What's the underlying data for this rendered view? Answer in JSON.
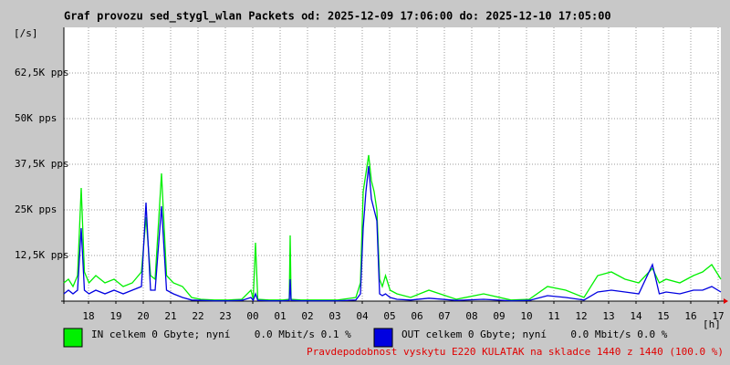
{
  "chart_data": {
    "type": "line",
    "title": "Graf provozu sed_stygl_wlan Packets od: 2025-12-09 17:06:00 do: 2025-12-10 17:05:00",
    "y_unit": "[/s]",
    "x_unit": "[h]",
    "x": [
      0,
      10,
      20,
      30,
      38,
      45,
      55,
      70,
      90,
      110,
      130,
      150,
      170,
      180,
      190,
      200,
      214,
      225,
      240,
      260,
      280,
      300,
      330,
      360,
      390,
      410,
      415,
      420,
      425,
      450,
      480,
      494,
      496,
      498,
      520,
      560,
      600,
      640,
      650,
      656,
      662,
      668,
      674,
      680,
      686,
      692,
      698,
      705,
      715,
      730,
      760,
      800,
      860,
      920,
      980,
      1020,
      1060,
      1100,
      1140,
      1170,
      1200,
      1230,
      1260,
      1290,
      1305,
      1320,
      1350,
      1380,
      1400,
      1420,
      1440
    ],
    "xlim": [
      0,
      1440
    ],
    "xticks": [
      {
        "value": 54,
        "label": "18"
      },
      {
        "value": 114,
        "label": "19"
      },
      {
        "value": 174,
        "label": "20"
      },
      {
        "value": 234,
        "label": "21"
      },
      {
        "value": 294,
        "label": "22"
      },
      {
        "value": 354,
        "label": "23"
      },
      {
        "value": 414,
        "label": "00"
      },
      {
        "value": 474,
        "label": "01"
      },
      {
        "value": 534,
        "label": "02"
      },
      {
        "value": 594,
        "label": "03"
      },
      {
        "value": 654,
        "label": "04"
      },
      {
        "value": 714,
        "label": "05"
      },
      {
        "value": 774,
        "label": "06"
      },
      {
        "value": 834,
        "label": "07"
      },
      {
        "value": 894,
        "label": "08"
      },
      {
        "value": 954,
        "label": "09"
      },
      {
        "value": 1014,
        "label": "10"
      },
      {
        "value": 1074,
        "label": "11"
      },
      {
        "value": 1134,
        "label": "12"
      },
      {
        "value": 1194,
        "label": "13"
      },
      {
        "value": 1254,
        "label": "14"
      },
      {
        "value": 1314,
        "label": "15"
      },
      {
        "value": 1374,
        "label": "16"
      },
      {
        "value": 1434,
        "label": "17"
      }
    ],
    "ylim": [
      0,
      75000
    ],
    "yticks": [
      {
        "value": 12500,
        "label": "12,5K pps"
      },
      {
        "value": 25000,
        "label": "25K pps"
      },
      {
        "value": 37500,
        "label": "37,5K pps"
      },
      {
        "value": 50000,
        "label": "50K pps"
      },
      {
        "value": 62500,
        "label": "62,5K pps"
      }
    ],
    "grid": true,
    "series": [
      {
        "name": "IN celkem 0 Gbyte; nyní    0.0 Mbit/s 0.1 %",
        "color": "#00f000",
        "values": [
          5000,
          6000,
          4000,
          7000,
          31000,
          8000,
          5000,
          7000,
          5000,
          6000,
          4000,
          5000,
          8000,
          23000,
          7000,
          6000,
          35000,
          7000,
          5000,
          4000,
          1000,
          500,
          300,
          300,
          500,
          3000,
          500,
          16000,
          500,
          300,
          300,
          500,
          18000,
          500,
          300,
          300,
          300,
          1000,
          5000,
          30000,
          35000,
          40000,
          33000,
          30000,
          25000,
          6000,
          4000,
          7000,
          3000,
          2000,
          1000,
          3000,
          500,
          2000,
          300,
          500,
          4000,
          3000,
          1000,
          7000,
          8000,
          6000,
          5000,
          9000,
          5000,
          6000,
          5000,
          7000,
          8000,
          10000,
          6000
        ]
      },
      {
        "name": "OUT celkem 0 Gbyte; nyní    0.0 Mbit/s 0.0 %",
        "color": "#0000e0",
        "values": [
          2000,
          3000,
          2000,
          3000,
          20000,
          3000,
          2000,
          3000,
          2000,
          3000,
          2000,
          3000,
          4000,
          27000,
          3000,
          3000,
          26000,
          3000,
          2000,
          1000,
          300,
          200,
          100,
          100,
          200,
          1000,
          200,
          2000,
          200,
          100,
          100,
          200,
          6000,
          200,
          100,
          100,
          100,
          300,
          2000,
          20000,
          30000,
          37000,
          28000,
          25000,
          22000,
          2000,
          1500,
          2000,
          1000,
          500,
          300,
          800,
          200,
          500,
          100,
          200,
          1500,
          1000,
          300,
          2500,
          3000,
          2500,
          2000,
          10000,
          2000,
          2500,
          2000,
          3000,
          3000,
          4000,
          2500
        ]
      }
    ],
    "footnote": "Pravdepodobnost vyskytu E220 KULATAK na skladce 1440 z 1440 (100.0 %)"
  }
}
